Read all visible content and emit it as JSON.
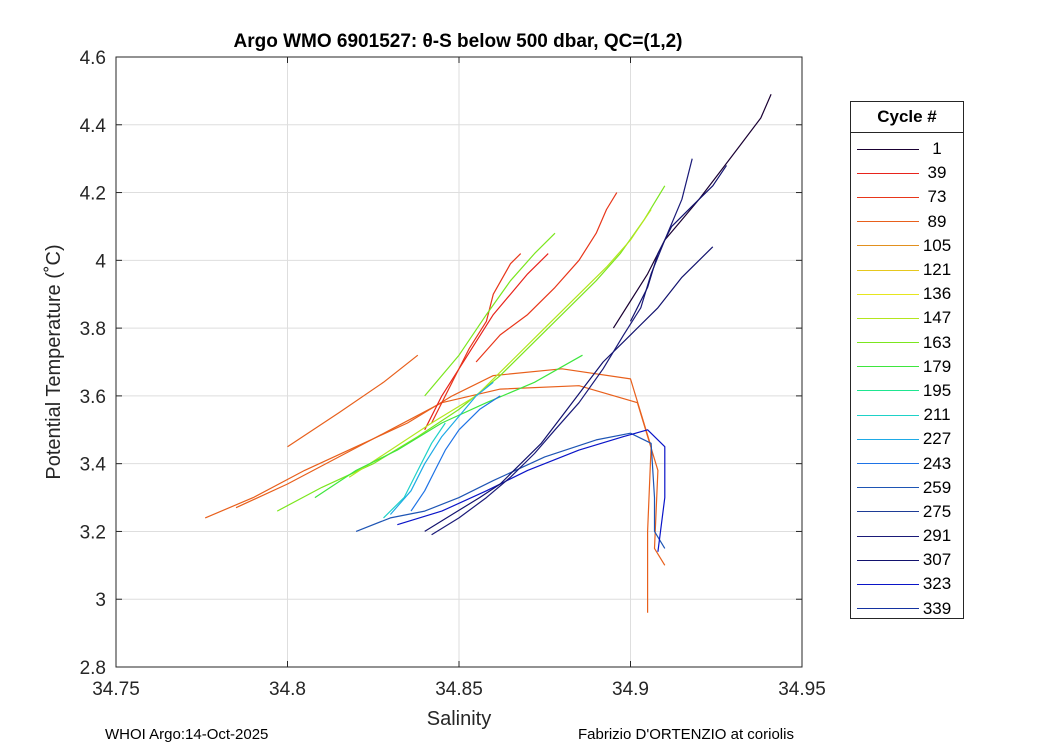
{
  "chart_data": {
    "type": "line",
    "title": "Argo WMO 6901527: θ-S below 500 dbar,  QC=(1,2)",
    "xlabel": "Salinity",
    "ylabel": "Potential Temperature (˚C)",
    "xlim": [
      34.75,
      34.95
    ],
    "ylim": [
      2.8,
      4.6
    ],
    "xticks": [
      34.75,
      34.8,
      34.85,
      34.9,
      34.95
    ],
    "xtick_labels": [
      "34.75",
      "34.8",
      "34.85",
      "34.9",
      "34.95"
    ],
    "yticks": [
      2.8,
      3,
      3.2,
      3.4,
      3.6,
      3.8,
      4,
      4.2,
      4.4,
      4.6
    ],
    "ytick_labels": [
      "2.8",
      "3",
      "3.2",
      "3.4",
      "3.6",
      "3.8",
      "4",
      "4.2",
      "4.4",
      "4.6"
    ],
    "grid": true,
    "legend": {
      "title": "Cycle #",
      "placement": "outside-right",
      "entries": [
        {
          "label": "1",
          "color": "#1a0033"
        },
        {
          "label": "39",
          "color": "#e8231c"
        },
        {
          "label": "73",
          "color": "#e8361a"
        },
        {
          "label": "89",
          "color": "#e8601c"
        },
        {
          "label": "105",
          "color": "#e2901e"
        },
        {
          "label": "121",
          "color": "#e6c81e"
        },
        {
          "label": "136",
          "color": "#e6e61e"
        },
        {
          "label": "147",
          "color": "#b4e61e"
        },
        {
          "label": "163",
          "color": "#7be61e"
        },
        {
          "label": "179",
          "color": "#3ee63e"
        },
        {
          "label": "195",
          "color": "#1ee690"
        },
        {
          "label": "211",
          "color": "#1ed2c8"
        },
        {
          "label": "227",
          "color": "#1eaae6"
        },
        {
          "label": "243",
          "color": "#1e73e6"
        },
        {
          "label": "259",
          "color": "#1e55b4"
        },
        {
          "label": "275",
          "color": "#1e3c96"
        },
        {
          "label": "291",
          "color": "#1a1a78"
        },
        {
          "label": "307",
          "color": "#12126e"
        },
        {
          "label": "323",
          "color": "#0a14c8"
        },
        {
          "label": "339",
          "color": "#1432a0"
        }
      ]
    },
    "series": [
      {
        "name": "orange-long",
        "color": "#e8601c",
        "points": [
          [
            34.776,
            3.24
          ],
          [
            34.79,
            3.3
          ],
          [
            34.805,
            3.38
          ],
          [
            34.82,
            3.45
          ],
          [
            34.835,
            3.52
          ],
          [
            34.848,
            3.6
          ],
          [
            34.86,
            3.66
          ],
          [
            34.88,
            3.68
          ],
          [
            34.9,
            3.65
          ],
          [
            34.906,
            3.45
          ],
          [
            34.905,
            3.2
          ],
          [
            34.905,
            3.05
          ],
          [
            34.905,
            2.96
          ]
        ]
      },
      {
        "name": "orange-long-2",
        "color": "#e8601c",
        "points": [
          [
            34.785,
            3.27
          ],
          [
            34.8,
            3.34
          ],
          [
            34.815,
            3.42
          ],
          [
            34.83,
            3.5
          ],
          [
            34.845,
            3.58
          ],
          [
            34.862,
            3.62
          ],
          [
            34.885,
            3.63
          ],
          [
            34.902,
            3.58
          ],
          [
            34.908,
            3.38
          ],
          [
            34.907,
            3.15
          ],
          [
            34.91,
            3.1
          ]
        ]
      },
      {
        "name": "orange-upper",
        "color": "#e8601c",
        "points": [
          [
            34.8,
            3.45
          ],
          [
            34.815,
            3.55
          ],
          [
            34.828,
            3.64
          ],
          [
            34.838,
            3.72
          ]
        ]
      },
      {
        "name": "red-1",
        "color": "#e8231c",
        "points": [
          [
            34.84,
            3.5
          ],
          [
            34.845,
            3.6
          ],
          [
            34.85,
            3.68
          ],
          [
            34.855,
            3.76
          ],
          [
            34.86,
            3.84
          ],
          [
            34.865,
            3.9
          ],
          [
            34.87,
            3.96
          ],
          [
            34.876,
            4.02
          ]
        ]
      },
      {
        "name": "red-2",
        "color": "#e8361a",
        "points": [
          [
            34.842,
            3.52
          ],
          [
            34.848,
            3.64
          ],
          [
            34.853,
            3.74
          ],
          [
            34.858,
            3.82
          ],
          [
            34.86,
            3.9
          ],
          [
            34.865,
            3.99
          ],
          [
            34.868,
            4.02
          ]
        ]
      },
      {
        "name": "red-3",
        "color": "#e8361a",
        "points": [
          [
            34.855,
            3.7
          ],
          [
            34.862,
            3.78
          ],
          [
            34.87,
            3.84
          ],
          [
            34.878,
            3.92
          ],
          [
            34.885,
            4.0
          ],
          [
            34.89,
            4.08
          ],
          [
            34.893,
            4.15
          ],
          [
            34.896,
            4.2
          ]
        ]
      },
      {
        "name": "green-1",
        "color": "#7be61e",
        "points": [
          [
            34.797,
            3.26
          ],
          [
            34.81,
            3.33
          ],
          [
            34.825,
            3.4
          ],
          [
            34.838,
            3.48
          ],
          [
            34.85,
            3.56
          ],
          [
            34.862,
            3.66
          ],
          [
            34.872,
            3.76
          ],
          [
            34.882,
            3.86
          ],
          [
            34.89,
            3.94
          ],
          [
            34.897,
            4.02
          ],
          [
            34.904,
            4.12
          ],
          [
            34.91,
            4.22
          ]
        ]
      },
      {
        "name": "green-2",
        "color": "#b4e61e",
        "points": [
          [
            34.818,
            3.36
          ],
          [
            34.83,
            3.44
          ],
          [
            34.842,
            3.52
          ],
          [
            34.855,
            3.6
          ],
          [
            34.865,
            3.7
          ],
          [
            34.875,
            3.8
          ],
          [
            34.885,
            3.9
          ],
          [
            34.893,
            3.98
          ],
          [
            34.9,
            4.06
          ],
          [
            34.906,
            4.15
          ]
        ]
      },
      {
        "name": "green-3",
        "color": "#3ee63e",
        "points": [
          [
            34.808,
            3.3
          ],
          [
            34.82,
            3.38
          ],
          [
            34.832,
            3.44
          ],
          [
            34.845,
            3.52
          ],
          [
            34.858,
            3.58
          ],
          [
            34.872,
            3.64
          ],
          [
            34.886,
            3.72
          ]
        ]
      },
      {
        "name": "green-4",
        "color": "#7be61e",
        "points": [
          [
            34.84,
            3.6
          ],
          [
            34.85,
            3.72
          ],
          [
            34.858,
            3.84
          ],
          [
            34.865,
            3.94
          ],
          [
            34.872,
            4.02
          ],
          [
            34.878,
            4.08
          ]
        ]
      },
      {
        "name": "cyan-1",
        "color": "#1ed2c8",
        "points": [
          [
            34.828,
            3.24
          ],
          [
            34.834,
            3.3
          ],
          [
            34.838,
            3.38
          ],
          [
            34.842,
            3.46
          ],
          [
            34.846,
            3.52
          ]
        ]
      },
      {
        "name": "cyan-2",
        "color": "#1eaae6",
        "points": [
          [
            34.83,
            3.25
          ],
          [
            34.836,
            3.32
          ],
          [
            34.84,
            3.4
          ],
          [
            34.845,
            3.48
          ],
          [
            34.85,
            3.54
          ],
          [
            34.855,
            3.6
          ],
          [
            34.86,
            3.64
          ]
        ]
      },
      {
        "name": "blue-1",
        "color": "#1e73e6",
        "points": [
          [
            34.836,
            3.26
          ],
          [
            34.84,
            3.32
          ],
          [
            34.843,
            3.38
          ],
          [
            34.846,
            3.44
          ],
          [
            34.85,
            3.5
          ],
          [
            34.856,
            3.56
          ],
          [
            34.862,
            3.6
          ]
        ]
      },
      {
        "name": "blue-2",
        "color": "#1e55b4",
        "points": [
          [
            34.82,
            3.2
          ],
          [
            34.83,
            3.24
          ],
          [
            34.84,
            3.26
          ],
          [
            34.85,
            3.3
          ],
          [
            34.86,
            3.35
          ],
          [
            34.875,
            3.42
          ],
          [
            34.89,
            3.47
          ],
          [
            34.9,
            3.49
          ],
          [
            34.906,
            3.46
          ],
          [
            34.907,
            3.3
          ],
          [
            34.907,
            3.2
          ],
          [
            34.91,
            3.15
          ]
        ]
      },
      {
        "name": "blue-3",
        "color": "#0a14c8",
        "points": [
          [
            34.832,
            3.22
          ],
          [
            34.845,
            3.26
          ],
          [
            34.858,
            3.32
          ],
          [
            34.87,
            3.38
          ],
          [
            34.885,
            3.44
          ],
          [
            34.898,
            3.48
          ],
          [
            34.905,
            3.5
          ],
          [
            34.91,
            3.45
          ],
          [
            34.91,
            3.3
          ],
          [
            34.908,
            3.14
          ]
        ]
      },
      {
        "name": "navy-1",
        "color": "#12126e",
        "points": [
          [
            34.84,
            3.2
          ],
          [
            34.848,
            3.25
          ],
          [
            34.856,
            3.3
          ],
          [
            34.862,
            3.34
          ],
          [
            34.868,
            3.4
          ],
          [
            34.874,
            3.46
          ],
          [
            34.88,
            3.54
          ],
          [
            34.886,
            3.62
          ],
          [
            34.892,
            3.7
          ],
          [
            34.9,
            3.78
          ],
          [
            34.908,
            3.86
          ],
          [
            34.915,
            3.95
          ],
          [
            34.924,
            4.04
          ]
        ]
      },
      {
        "name": "navy-2",
        "color": "#1a1a78",
        "points": [
          [
            34.842,
            3.19
          ],
          [
            34.85,
            3.24
          ],
          [
            34.858,
            3.3
          ],
          [
            34.865,
            3.36
          ],
          [
            34.872,
            3.43
          ],
          [
            34.878,
            3.5
          ],
          [
            34.885,
            3.58
          ],
          [
            34.892,
            3.68
          ],
          [
            34.898,
            3.78
          ],
          [
            34.903,
            3.86
          ],
          [
            34.906,
            3.96
          ],
          [
            34.91,
            4.06
          ],
          [
            34.915,
            4.18
          ],
          [
            34.918,
            4.3
          ]
        ]
      },
      {
        "name": "navy-3",
        "color": "#1a0033",
        "points": [
          [
            34.895,
            3.8
          ],
          [
            34.9,
            3.88
          ],
          [
            34.905,
            3.96
          ],
          [
            34.91,
            4.06
          ],
          [
            34.915,
            4.12
          ],
          [
            34.92,
            4.18
          ],
          [
            34.926,
            4.26
          ],
          [
            34.932,
            4.34
          ],
          [
            34.938,
            4.42
          ],
          [
            34.941,
            4.49
          ]
        ]
      },
      {
        "name": "navy-4",
        "color": "#12126e",
        "points": [
          [
            34.9,
            3.82
          ],
          [
            34.905,
            3.92
          ],
          [
            34.908,
            4.02
          ],
          [
            34.912,
            4.1
          ],
          [
            34.918,
            4.16
          ],
          [
            34.924,
            4.22
          ],
          [
            34.928,
            4.28
          ]
        ]
      }
    ]
  },
  "footer": {
    "left": "WHOI Argo:14-Oct-2025",
    "right": "Fabrizio D'ORTENZIO at coriolis"
  }
}
